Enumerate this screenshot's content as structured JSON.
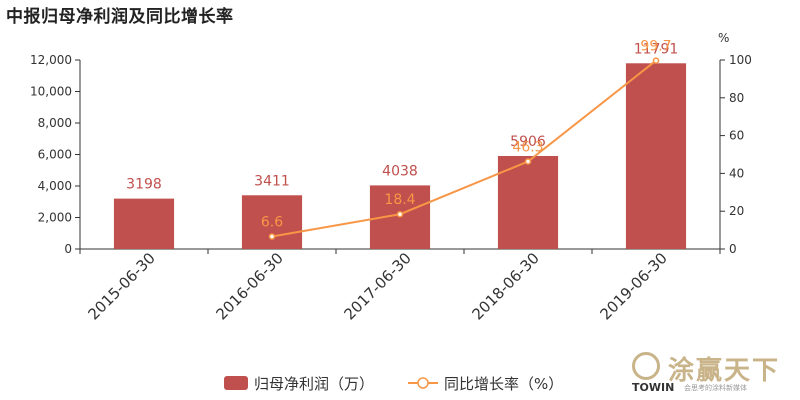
{
  "title": "中报归母净利润及同比增长率",
  "chart_data": {
    "type": "bar",
    "categories": [
      "2015-06-30",
      "2016-06-30",
      "2017-06-30",
      "2018-06-30",
      "2019-06-30"
    ],
    "series": [
      {
        "name": "归母净利润（万）",
        "type": "bar",
        "axis": "left",
        "values": [
          3198,
          3411,
          4038,
          5906,
          11791
        ],
        "color": "#c0504d",
        "labels": [
          "3198",
          "3411",
          "4038",
          "5906",
          "11791"
        ]
      },
      {
        "name": "同比增长率（%）",
        "type": "line",
        "axis": "right",
        "values": [
          null,
          6.6,
          18.4,
          46.3,
          99.7
        ],
        "color": "#f79646",
        "labels": [
          "",
          "6.6",
          "18.4",
          "46.3",
          "99.7"
        ]
      }
    ],
    "y_left": {
      "ylim": [
        0,
        12000
      ],
      "ticks": [
        "0",
        "2,000",
        "4,000",
        "6,000",
        "8,000",
        "10,000",
        "12,000"
      ],
      "tick_values": [
        0,
        2000,
        4000,
        6000,
        8000,
        10000,
        12000
      ]
    },
    "y_right": {
      "label": "%",
      "ylim": [
        0,
        100
      ],
      "ticks": [
        "0",
        "20",
        "40",
        "60",
        "80",
        "100"
      ],
      "tick_values": [
        0,
        20,
        40,
        60,
        80,
        100
      ]
    },
    "legend_position": "bottom-center",
    "grid": false
  },
  "watermark": {
    "cn": "涂赢天下",
    "en": "TOWIN",
    "sub": "会思考的涂料新媒体"
  }
}
